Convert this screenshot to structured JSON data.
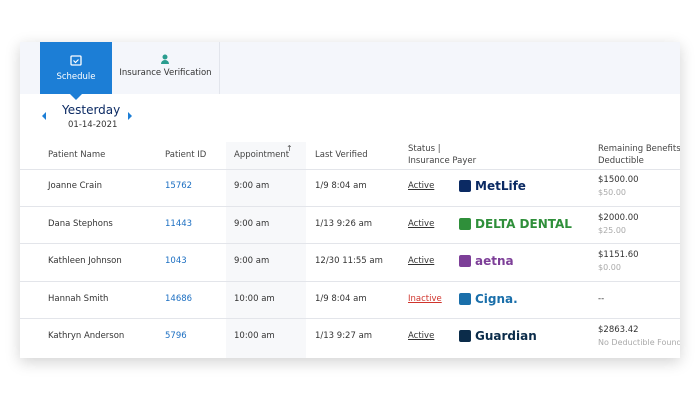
{
  "tabs": [
    "Schedule",
    "Insurance Verification"
  ],
  "date": {
    "day": "Yesterday",
    "value": "01-14-2021"
  },
  "table": {
    "headers": [
      [
        "Patient Name"
      ],
      [
        "Patient ID"
      ],
      [
        "Appointment"
      ],
      [
        "Last Verified"
      ],
      [
        "Status |",
        "Insurance Payer"
      ],
      [
        "Remaining Benefits |",
        "Deductible"
      ]
    ],
    "rows": [
      {
        "name": "Joanne Crain",
        "id": "15762",
        "appointment": "9:00 am",
        "last_verified": "1/9 8:04 am",
        "status": "Active",
        "status_color": "#333333",
        "payer": "MetLife",
        "payer_color": "#0b2a63",
        "benefits": "$1500.00",
        "deductible": "$50.00"
      },
      {
        "name": "Dana Stephons",
        "id": "11443",
        "appointment": "9:00 am",
        "last_verified": "1/13 9:26 am",
        "status": "Active",
        "status_color": "#333333",
        "payer": "DELTA DENTAL",
        "payer_color": "#2f8f3a",
        "benefits": "$2000.00",
        "deductible": "$25.00"
      },
      {
        "name": "Kathleen Johnson",
        "id": "1043",
        "appointment": "9:00 am",
        "last_verified": "12/30 11:55 am",
        "status": "Active",
        "status_color": "#333333",
        "payer": "aetna",
        "payer_color": "#7d3f98",
        "benefits": "$1151.60",
        "deductible": "$0.00"
      },
      {
        "name": "Hannah Smith",
        "id": "14686",
        "appointment": "10:00 am",
        "last_verified": "1/9 8:04 am",
        "status": "Inactive",
        "status_color": "#d0342c",
        "payer": "Cigna.",
        "payer_color": "#1a6faa",
        "benefits": "--"
      },
      {
        "name": "Kathryn Anderson",
        "id": "5796",
        "appointment": "10:00 am",
        "last_verified": "1/13 9:27 am",
        "status": "Active",
        "status_color": "#333333",
        "payer": "Guardian",
        "payer_color": "#0b2c4a",
        "benefits": "$2863.42",
        "deductible": "No Deductible Found"
      }
    ]
  }
}
